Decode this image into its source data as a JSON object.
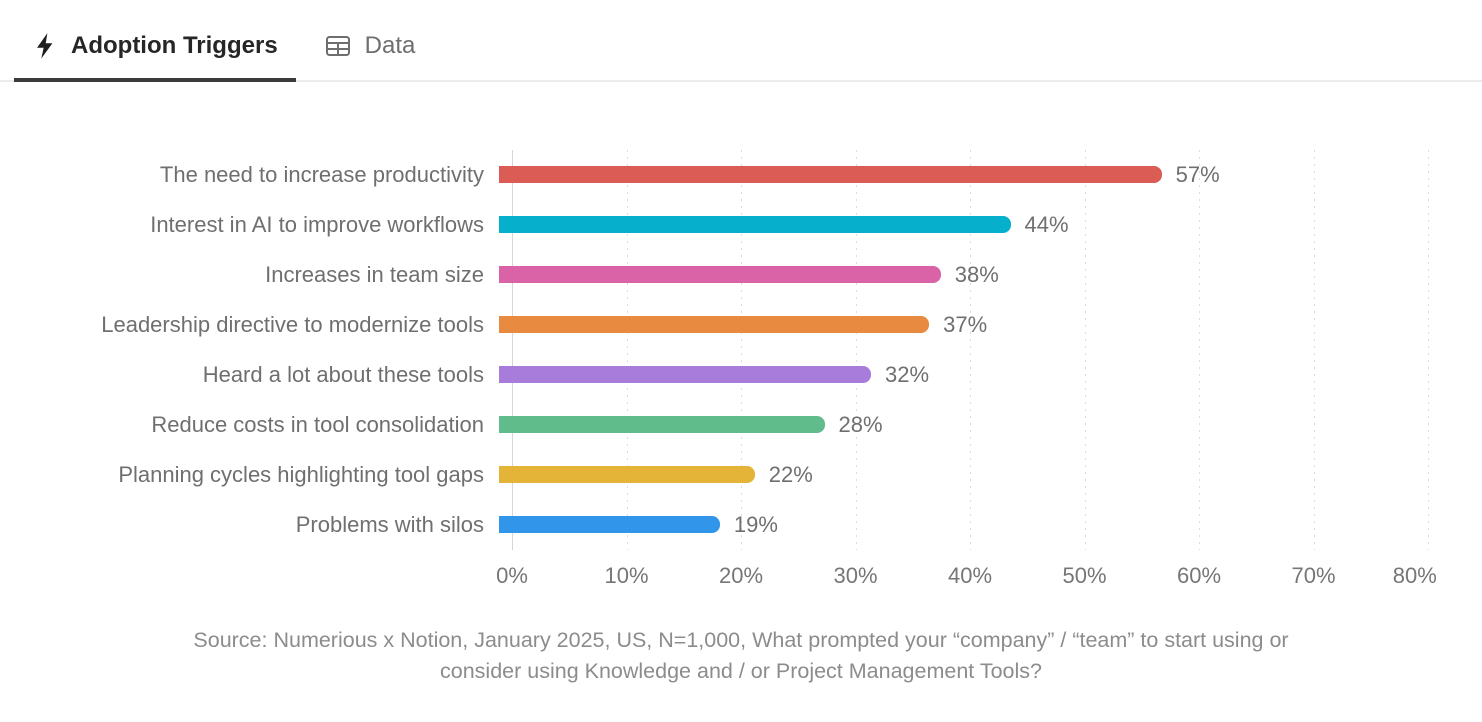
{
  "tabs": [
    {
      "label": "Adoption Triggers",
      "icon": "lightning-icon",
      "active": true
    },
    {
      "label": "Data",
      "icon": "table-icon",
      "active": false
    }
  ],
  "chart_data": {
    "type": "bar",
    "orientation": "horizontal",
    "title": "Adoption Triggers",
    "categories": [
      "The need to increase productivity",
      "Interest in AI to improve workflows",
      "Increases in team size",
      "Leadership directive to modernize tools",
      "Heard a lot about these tools",
      "Reduce costs in tool consolidation",
      "Planning cycles highlighting tool gaps",
      "Problems with silos"
    ],
    "values": [
      57,
      44,
      38,
      37,
      32,
      28,
      22,
      19
    ],
    "value_labels": [
      "57%",
      "44%",
      "38%",
      "37%",
      "32%",
      "28%",
      "22%",
      "19%"
    ],
    "colors": [
      "#db5b55",
      "#06afcc",
      "#d963a6",
      "#e88b40",
      "#a87cdb",
      "#61bc8b",
      "#e4b438",
      "#3196e9"
    ],
    "x_ticks": [
      "0%",
      "10%",
      "20%",
      "30%",
      "40%",
      "50%",
      "60%",
      "70%",
      "80%"
    ],
    "xlim": [
      0,
      80
    ],
    "xlabel": "",
    "ylabel": "",
    "grid": "vertical-dotted",
    "legend": "none"
  },
  "source": {
    "lines": [
      "Source: Numerious x Notion, January 2025, US, N=1,000, What prompted your “company” / “team” to start using or",
      "consider using Knowledge and / or Project Management Tools?"
    ]
  }
}
